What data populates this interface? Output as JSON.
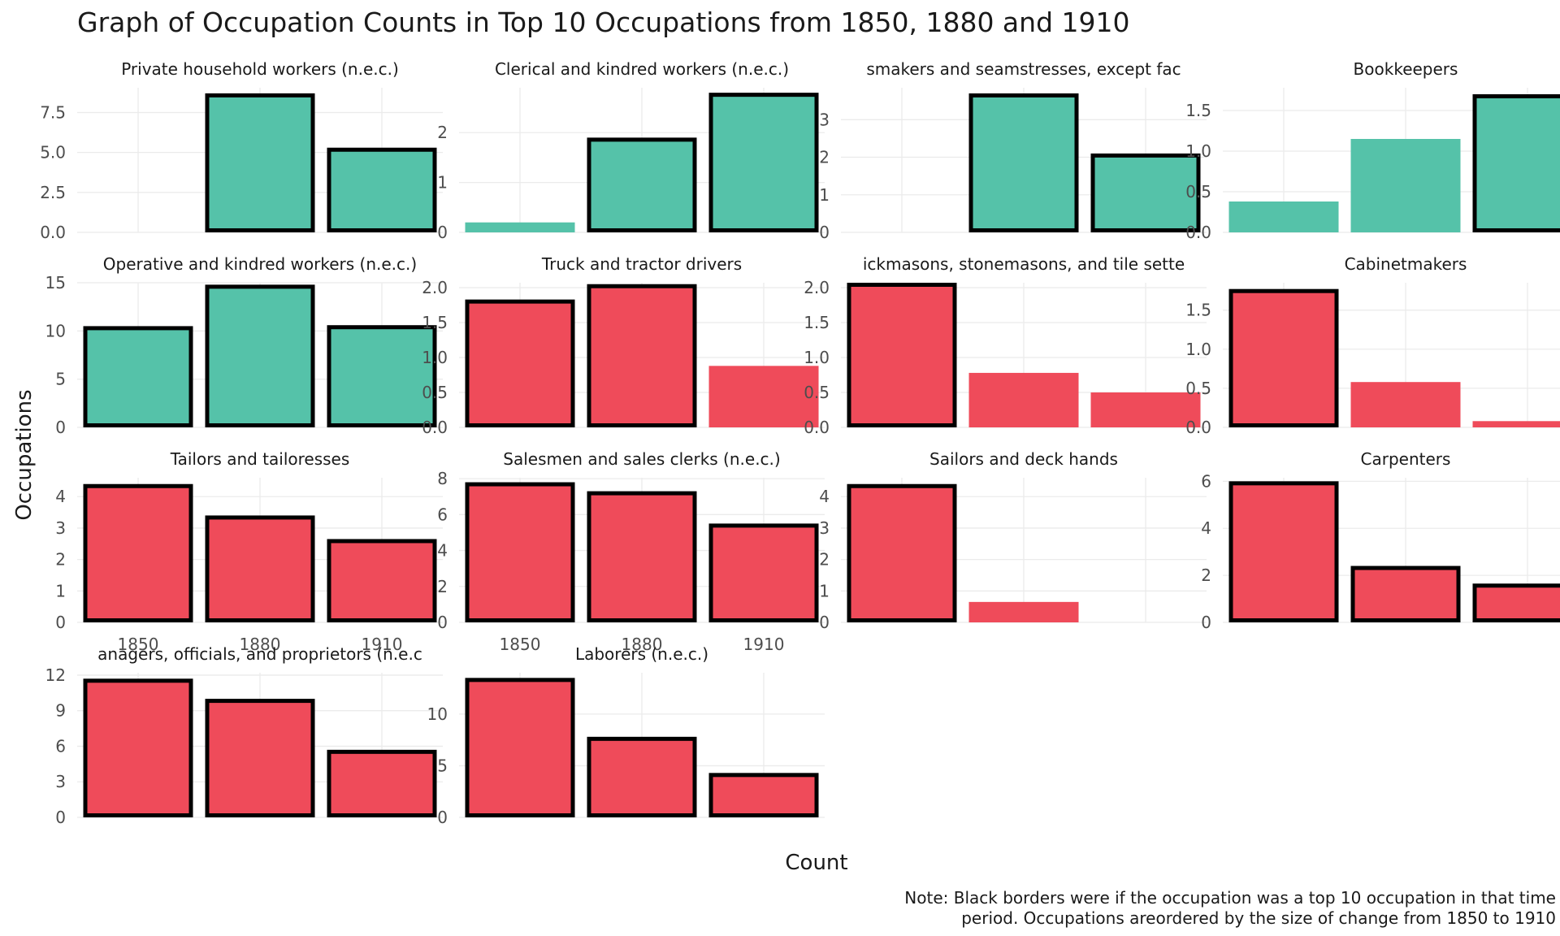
{
  "title": "Graph of Occupation Counts in Top 10 Occupations from 1850, 1880 and 1910",
  "ylabel": "Occupations",
  "xlabel": "Count",
  "note_lines": [
    "Note: Black borders were if the occupation was a top 10 occupation in that time",
    "period. Occupations areordered by the size of change from 1850 to 1910"
  ],
  "colors": {
    "increase": "#55C2A9",
    "decrease": "#EF4B5A",
    "border": "#000000",
    "grid": "#ebebeb"
  },
  "chart_data": {
    "type": "bar",
    "categories": [
      "1850",
      "1880",
      "1910"
    ],
    "panels": [
      {
        "name": "Private household workers (n.e.c.)",
        "values": [
          0,
          8.7,
          5.3
        ],
        "top10": [
          false,
          true,
          true
        ],
        "trend": "increase",
        "ticks": [
          0,
          2.5,
          5,
          7.5
        ],
        "tick_labels": [
          "0.0",
          "2.5",
          "5.0",
          "7.5"
        ],
        "ylim": [
          0,
          9.05
        ]
      },
      {
        "name": "Clerical and kindred workers (n.e.c.)",
        "values": [
          0.2,
          1.9,
          2.8
        ],
        "top10": [
          false,
          true,
          true
        ],
        "trend": "increase",
        "ticks": [
          0,
          1,
          2
        ],
        "tick_labels": [
          "0",
          "1",
          "2"
        ],
        "ylim": [
          0,
          2.9
        ]
      },
      {
        "name": "Dressmakers and seamstresses, except factory",
        "display_name": "smakers and seamstresses, except fac",
        "values": [
          0,
          3.7,
          2.1
        ],
        "top10": [
          false,
          true,
          true
        ],
        "trend": "increase",
        "ticks": [
          0,
          1,
          2,
          3
        ],
        "tick_labels": [
          "0",
          "1",
          "2",
          "3"
        ],
        "ylim": [
          0,
          3.85
        ]
      },
      {
        "name": "Bookkeepers",
        "values": [
          0.38,
          1.15,
          1.7
        ],
        "top10": [
          false,
          false,
          true
        ],
        "trend": "increase",
        "ticks": [
          0,
          0.5,
          1,
          1.5
        ],
        "tick_labels": [
          "0.0",
          "0.5",
          "1.0",
          "1.5"
        ],
        "ylim": [
          0,
          1.78
        ]
      },
      {
        "name": "Operative and kindred workers (n.e.c.)",
        "values": [
          10.5,
          14.8,
          10.6
        ],
        "top10": [
          true,
          true,
          true
        ],
        "trend": "increase",
        "ticks": [
          0,
          5,
          10,
          15
        ],
        "tick_labels": [
          "0",
          "5",
          "10",
          "15"
        ],
        "ylim": [
          0,
          15.0
        ]
      },
      {
        "name": "Truck and tractor drivers",
        "values": [
          1.83,
          2.05,
          0.88
        ],
        "top10": [
          true,
          true,
          false
        ],
        "trend": "decrease",
        "ticks": [
          0,
          0.5,
          1,
          1.5,
          2
        ],
        "tick_labels": [
          "0.0",
          "0.5",
          "1.0",
          "1.5",
          "2.0"
        ],
        "ylim": [
          0,
          2.07
        ]
      },
      {
        "name": "Brickmasons, stonemasons, and tile setters",
        "display_name": "ickmasons, stonemasons, and tile sette",
        "values": [
          2.07,
          0.78,
          0.5
        ],
        "top10": [
          true,
          false,
          false
        ],
        "trend": "decrease",
        "ticks": [
          0,
          0.5,
          1,
          1.5,
          2
        ],
        "tick_labels": [
          "0.0",
          "0.5",
          "1.0",
          "1.5",
          "2.0"
        ],
        "ylim": [
          0,
          2.07
        ]
      },
      {
        "name": "Cabinetmakers",
        "values": [
          1.77,
          0.58,
          0.08
        ],
        "top10": [
          true,
          false,
          false
        ],
        "trend": "decrease",
        "ticks": [
          0,
          0.5,
          1,
          1.5
        ],
        "tick_labels": [
          "0.0",
          "0.5",
          "1.0",
          "1.5"
        ],
        "ylim": [
          0,
          1.85
        ]
      },
      {
        "name": "Tailors and tailoresses",
        "values": [
          4.4,
          3.4,
          2.65
        ],
        "top10": [
          true,
          true,
          true
        ],
        "trend": "decrease",
        "ticks": [
          0,
          1,
          2,
          3,
          4
        ],
        "tick_labels": [
          "0",
          "1",
          "2",
          "3",
          "4"
        ],
        "ylim": [
          0,
          4.6
        ]
      },
      {
        "name": "Salesmen and sales clerks (n.e.c.)",
        "values": [
          7.8,
          7.3,
          5.5
        ],
        "top10": [
          true,
          true,
          true
        ],
        "trend": "decrease",
        "ticks": [
          0,
          2,
          4,
          6,
          8
        ],
        "tick_labels": [
          "0",
          "2",
          "4",
          "6",
          "8"
        ],
        "ylim": [
          0,
          8.05
        ]
      },
      {
        "name": "Sailors and deck hands",
        "values": [
          4.4,
          0.65,
          0
        ],
        "top10": [
          true,
          false,
          false
        ],
        "trend": "decrease",
        "ticks": [
          0,
          1,
          2,
          3,
          4
        ],
        "tick_labels": [
          "0",
          "1",
          "2",
          "3",
          "4"
        ],
        "ylim": [
          0,
          4.6
        ]
      },
      {
        "name": "Carpenters",
        "values": [
          6.0,
          2.4,
          1.65
        ],
        "top10": [
          true,
          true,
          true
        ],
        "trend": "decrease",
        "ticks": [
          0,
          2,
          4,
          6
        ],
        "tick_labels": [
          "0",
          "2",
          "4",
          "6"
        ],
        "ylim": [
          0,
          6.15
        ]
      },
      {
        "name": "Managers, officials, and proprietors (n.e.c.)",
        "display_name": "anagers, officials, and proprietors (n.e.c",
        "values": [
          11.7,
          10.0,
          5.7
        ],
        "top10": [
          true,
          true,
          true
        ],
        "trend": "decrease",
        "ticks": [
          0,
          3,
          6,
          9,
          12
        ],
        "tick_labels": [
          "0",
          "3",
          "6",
          "9",
          "12"
        ],
        "ylim": [
          0,
          12.2
        ]
      },
      {
        "name": "Laborers (n.e.c.)",
        "values": [
          13.5,
          7.8,
          4.3
        ],
        "top10": [
          true,
          true,
          true
        ],
        "trend": "decrease",
        "ticks": [
          0,
          5,
          10
        ],
        "tick_labels": [
          "0",
          "5",
          "10"
        ],
        "ylim": [
          0,
          14.0
        ]
      }
    ]
  }
}
